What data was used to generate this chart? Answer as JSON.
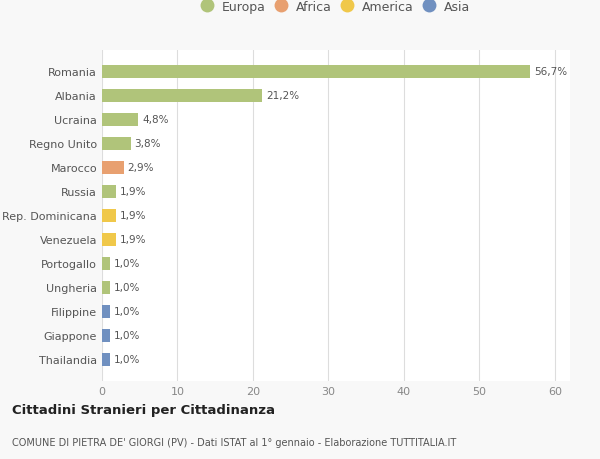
{
  "categories": [
    "Thailandia",
    "Giappone",
    "Filippine",
    "Ungheria",
    "Portogallo",
    "Venezuela",
    "Rep. Dominicana",
    "Russia",
    "Marocco",
    "Regno Unito",
    "Ucraina",
    "Albania",
    "Romania"
  ],
  "values": [
    1.0,
    1.0,
    1.0,
    1.0,
    1.0,
    1.9,
    1.9,
    1.9,
    2.9,
    3.8,
    4.8,
    21.2,
    56.7
  ],
  "labels": [
    "1,0%",
    "1,0%",
    "1,0%",
    "1,0%",
    "1,0%",
    "1,9%",
    "1,9%",
    "1,9%",
    "2,9%",
    "3,8%",
    "4,8%",
    "21,2%",
    "56,7%"
  ],
  "colors": [
    "#7090c0",
    "#7090c0",
    "#7090c0",
    "#b0c47a",
    "#b0c47a",
    "#f0c84a",
    "#f0c84a",
    "#b0c47a",
    "#e8a070",
    "#b0c47a",
    "#b0c47a",
    "#b0c47a",
    "#b0c47a"
  ],
  "legend_labels": [
    "Europa",
    "Africa",
    "America",
    "Asia"
  ],
  "legend_colors": [
    "#b0c47a",
    "#e8a070",
    "#f0c84a",
    "#7090c0"
  ],
  "xlim": [
    0,
    62
  ],
  "xticks": [
    0,
    10,
    20,
    30,
    40,
    50,
    60
  ],
  "title": "Cittadini Stranieri per Cittadinanza",
  "subtitle": "COMUNE DI PIETRA DE' GIORGI (PV) - Dati ISTAT al 1° gennaio - Elaborazione TUTTITALIA.IT",
  "bg_color": "#f8f8f8",
  "plot_bg_color": "#ffffff",
  "bar_height": 0.55,
  "grid_color": "#dddddd",
  "label_color": "#555555",
  "tick_color": "#888888"
}
